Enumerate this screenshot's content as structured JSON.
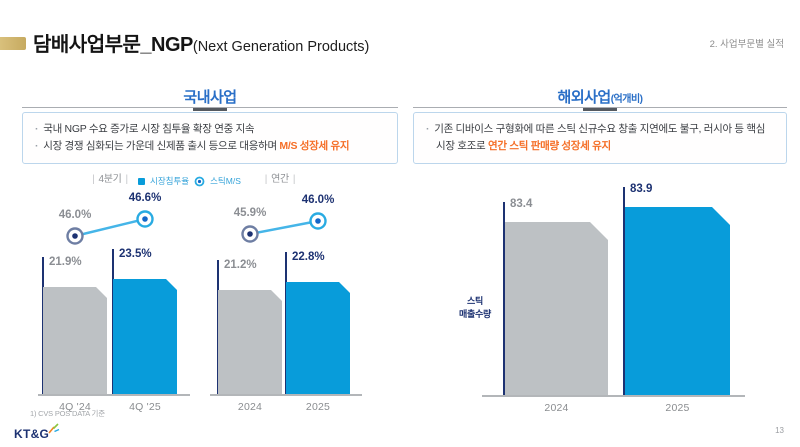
{
  "colors": {
    "accent_gold": "#cdb26a",
    "section_blue": "#2a6fc7",
    "navy": "#1d3272",
    "orange": "#f56f28",
    "bar_blue": "#089cda",
    "bar_gray": "#bdc1c4",
    "line_blue": "#45b5e8",
    "marker_ring_gray": "#6e7ea3",
    "marker_ring_blue": "#29abe2",
    "marker_dot_blue": "#1467c8",
    "label_gray": "#8b8e93"
  },
  "header": {
    "title": "담배사업부문_NGP",
    "title_suffix": "(Next Generation Products)",
    "breadcrumb": "2. 사업부문별 실적"
  },
  "domestic": {
    "section_title": "국내사업",
    "bullets": [
      {
        "text": "국내 NGP 수요 증가로 시장 침투율 확장 연중 지속",
        "highlight": ""
      },
      {
        "text": "시장 경쟁 심화되는 가운데 신제품 출시 등으로 대응하며 ",
        "highlight": "M/S 성장세 유지"
      }
    ]
  },
  "overseas": {
    "section_title": "해외사업",
    "section_unit": "(억개비)",
    "bullets": [
      {
        "text": "기존 디바이스 구형화에 따른 스틱 신규수요 창출 지연에도 불구, 러시아 등 핵심시장 호조로 ",
        "highlight": "연간 스틱 판매량 성장세 유지"
      }
    ],
    "ylabel_line1": "스틱",
    "ylabel_line2": "매출수량"
  },
  "chart_data": [
    {
      "id": "domestic-penetration-ms",
      "type": "bar",
      "title": "국내사업 시장침투율 및 스틱M/S",
      "legend": [
        "시장침투율",
        "스틱M/S"
      ],
      "groups": [
        {
          "label": "4분기",
          "categories": [
            "4Q '24",
            "4Q '25"
          ],
          "bar_series_name": "시장침투율",
          "bar_values_pct": [
            21.9,
            23.5
          ],
          "line_series_name": "스틱M/S",
          "line_values_pct": [
            46.0,
            46.6
          ]
        },
        {
          "label": "연간",
          "categories": [
            "2024",
            "2025"
          ],
          "bar_series_name": "시장침투율",
          "bar_values_pct": [
            21.2,
            22.8
          ],
          "line_series_name": "스틱M/S",
          "line_values_pct": [
            45.9,
            46.0
          ]
        }
      ],
      "footnote": "1) CVS POS DATA 기준"
    },
    {
      "id": "overseas-stick-volume",
      "type": "bar",
      "title": "해외사업 스틱 매출수량 (억개비)",
      "ylabel": "스틱 매출수량",
      "categories": [
        "2024",
        "2025"
      ],
      "values": [
        83.4,
        83.9
      ]
    }
  ],
  "footer": {
    "logo": "KT&G",
    "page": "13"
  }
}
